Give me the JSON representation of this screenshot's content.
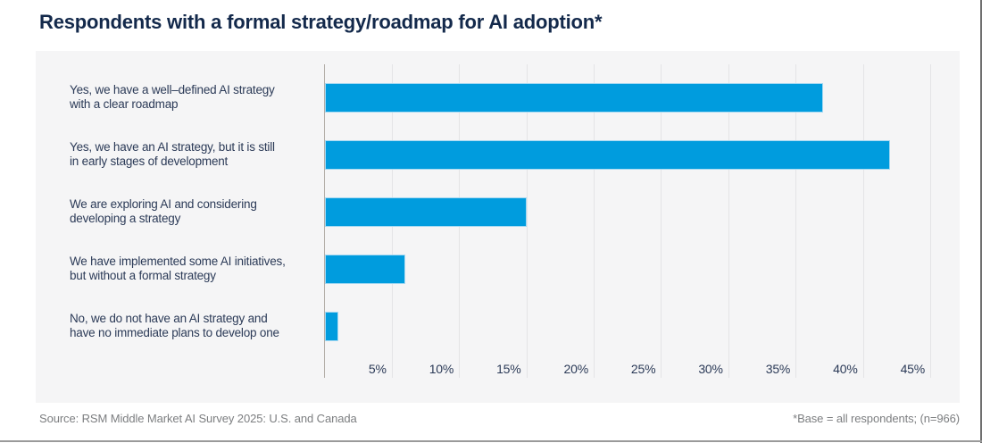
{
  "title": "Respondents with a formal strategy/roadmap for AI adoption*",
  "footer": {
    "source": "Source: RSM Middle Market AI Survey 2025: U.S. and Canada",
    "base_note": "*Base = all respondents; (n=966)"
  },
  "colors": {
    "bar_fill": "#009CDE",
    "bar_edge": "#A6D9F2",
    "title_text": "#13294B",
    "label_text": "#2B3A57",
    "card_background": "#F5F5F6",
    "gridline": "#E4E4E6",
    "axis_line": "#B4AEA8",
    "footer_text": "#7C7E80"
  },
  "chart_data": {
    "type": "bar",
    "orientation": "horizontal",
    "title": "Respondents with a formal strategy/roadmap for AI adoption*",
    "categories": [
      "Yes, we have a well–defined AI strategy with a clear roadmap",
      "Yes, we have an AI strategy, but it is still in early stages of development",
      "We are exploring AI and considering developing a strategy",
      "We have implemented some AI initiatives, but without a formal strategy",
      "No, we do not have an AI strategy and have no immediate plans to develop one"
    ],
    "category_lines": [
      [
        "Yes, we have a well–defined AI strategy",
        "with a clear roadmap"
      ],
      [
        "Yes, we have an AI strategy, but it is still",
        "in early stages of development"
      ],
      [
        "We are exploring AI and considering",
        "developing a strategy"
      ],
      [
        "We have implemented some AI initiatives,",
        "but without a formal strategy"
      ],
      [
        "No, we do not have an AI strategy and",
        "have no immediate plans to develop one"
      ]
    ],
    "values": [
      37,
      42,
      15,
      6,
      1
    ],
    "value_suffix": "%",
    "xlabel": "",
    "ylabel": "",
    "xlim": [
      0,
      45
    ],
    "x_tick_step": 5,
    "x_tick_labels": [
      "5%",
      "10%",
      "15%",
      "20%",
      "25%",
      "30%",
      "35%",
      "40%",
      "45%"
    ],
    "grid": true,
    "legend": false
  }
}
